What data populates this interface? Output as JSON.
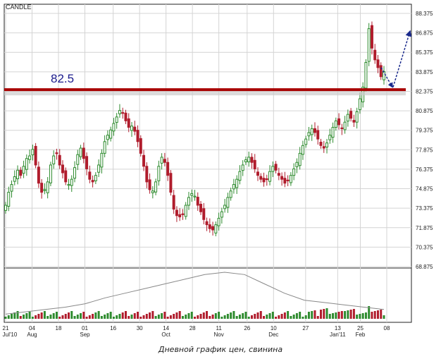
{
  "caption": "Дневной график цен,  свинина",
  "chart_data": {
    "type": "candlestick",
    "title": "CANDLE",
    "level_label": "82.5",
    "level_value": 82.5,
    "y_ticks": [
      "88.375",
      "86.875",
      "85.375",
      "83.875",
      "82.375",
      "80.875",
      "79.375",
      "77.875",
      "76.375",
      "74.875",
      "73.375",
      "71.875",
      "70.375",
      "68.875"
    ],
    "ylim": [
      68.875,
      89.0
    ],
    "x_ticks": [
      "21",
      "04",
      "18",
      "01",
      "16",
      "30",
      "14",
      "28",
      "11",
      "26",
      "10",
      "27",
      "13",
      "25",
      "08"
    ],
    "x_month_labels": [
      "Jul'10",
      "Aug",
      "Sep",
      "Oct",
      "Nov",
      "Dec",
      "Jan'11",
      "Feb"
    ],
    "x_date_range": [
      "2010-07-21",
      "2011-02-08"
    ],
    "grid": true,
    "colors": {
      "up": "#2e8b2e",
      "down": "#b01c2c",
      "level": "#a80000",
      "arrow": "#1a2a8c",
      "volume_line": "#888888"
    },
    "closes": [
      73.6,
      74.6,
      75.2,
      75.8,
      76.3,
      75.9,
      76.6,
      77.2,
      77.4,
      77.9,
      76.7,
      75.3,
      74.6,
      74.8,
      75.4,
      76.7,
      77.4,
      77.6,
      76.7,
      76.1,
      75.4,
      75.2,
      75.6,
      76.5,
      77.5,
      78.0,
      77.2,
      76.4,
      75.6,
      75.4,
      75.9,
      76.7,
      77.6,
      78.5,
      79.0,
      79.4,
      79.9,
      80.4,
      80.9,
      80.7,
      80.1,
      79.6,
      79.7,
      79.3,
      78.5,
      77.6,
      76.6,
      75.4,
      74.8,
      74.7,
      75.4,
      76.6,
      77.3,
      76.9,
      75.9,
      74.6,
      73.3,
      72.8,
      72.7,
      72.9,
      73.6,
      74.2,
      74.5,
      74.3,
      73.6,
      73.1,
      72.5,
      72.1,
      71.8,
      71.7,
      72.1,
      72.6,
      73.1,
      73.6,
      74.2,
      74.7,
      75.2,
      75.6,
      76.2,
      76.7,
      77.1,
      77.3,
      76.9,
      76.4,
      75.9,
      75.6,
      75.4,
      75.6,
      76.2,
      76.6,
      76.3,
      75.9,
      75.6,
      75.3,
      75.5,
      75.9,
      76.4,
      76.9,
      77.6,
      78.2,
      78.7,
      79.2,
      79.5,
      79.2,
      78.7,
      78.2,
      78.0,
      78.4,
      79.0,
      79.6,
      80.1,
      79.8,
      79.5,
      80.0,
      80.6,
      80.3,
      80.0,
      80.8,
      81.8,
      82.7,
      84.6,
      87.2,
      85.7,
      84.8,
      84.2,
      83.5,
      83.9
    ],
    "volume_series_levels": [
      4,
      6,
      8,
      10,
      13,
      18,
      22,
      26,
      30,
      34,
      38,
      40,
      38,
      30,
      22,
      16,
      14,
      12,
      10,
      8
    ],
    "arrows": [
      {
        "type": "up",
        "from_value": 82.7,
        "to_value": 87.0
      },
      {
        "type": "down",
        "from_value": 84.2,
        "to_value": 82.7
      }
    ]
  }
}
